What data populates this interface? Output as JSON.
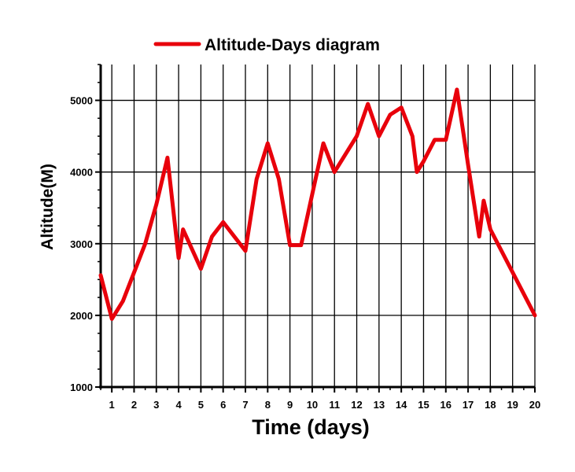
{
  "chart_data": {
    "type": "line",
    "xlabel": "Time (days)",
    "ylabel": "Altitude(M)",
    "xlim": [
      0.5,
      20
    ],
    "ylim": [
      1000,
      5500
    ],
    "x_ticks": [
      "1",
      "2",
      "3",
      "4",
      "5",
      "6",
      "7",
      "8",
      "9",
      "10",
      "11",
      "12",
      "13",
      "14",
      "15",
      "16",
      "17",
      "18",
      "19",
      "20"
    ],
    "y_ticks": [
      "1000",
      "2000",
      "3000",
      "4000",
      "5000"
    ],
    "grid": true,
    "legend_position": "top-center",
    "series": [
      {
        "name": "Altitude-Days diagram",
        "color": "#e8000b",
        "x": [
          0.5,
          1,
          1.5,
          2,
          2.5,
          3,
          3.5,
          4,
          4.2,
          5,
          5.5,
          6,
          7,
          7.5,
          8,
          8.5,
          9,
          9.5,
          10.5,
          11,
          12,
          12.5,
          13,
          13.5,
          14,
          14.5,
          14.7,
          15,
          15.5,
          16,
          16.5,
          17,
          17.5,
          17.7,
          18,
          20
        ],
        "y": [
          2560,
          1950,
          2200,
          2600,
          3000,
          3550,
          4200,
          2800,
          3200,
          2650,
          3100,
          3300,
          2900,
          3900,
          4400,
          3900,
          2980,
          2980,
          4400,
          4000,
          4500,
          4950,
          4500,
          4800,
          4900,
          4500,
          4000,
          4150,
          4450,
          4450,
          5150,
          4100,
          3100,
          3600,
          3200,
          2000
        ]
      }
    ]
  }
}
